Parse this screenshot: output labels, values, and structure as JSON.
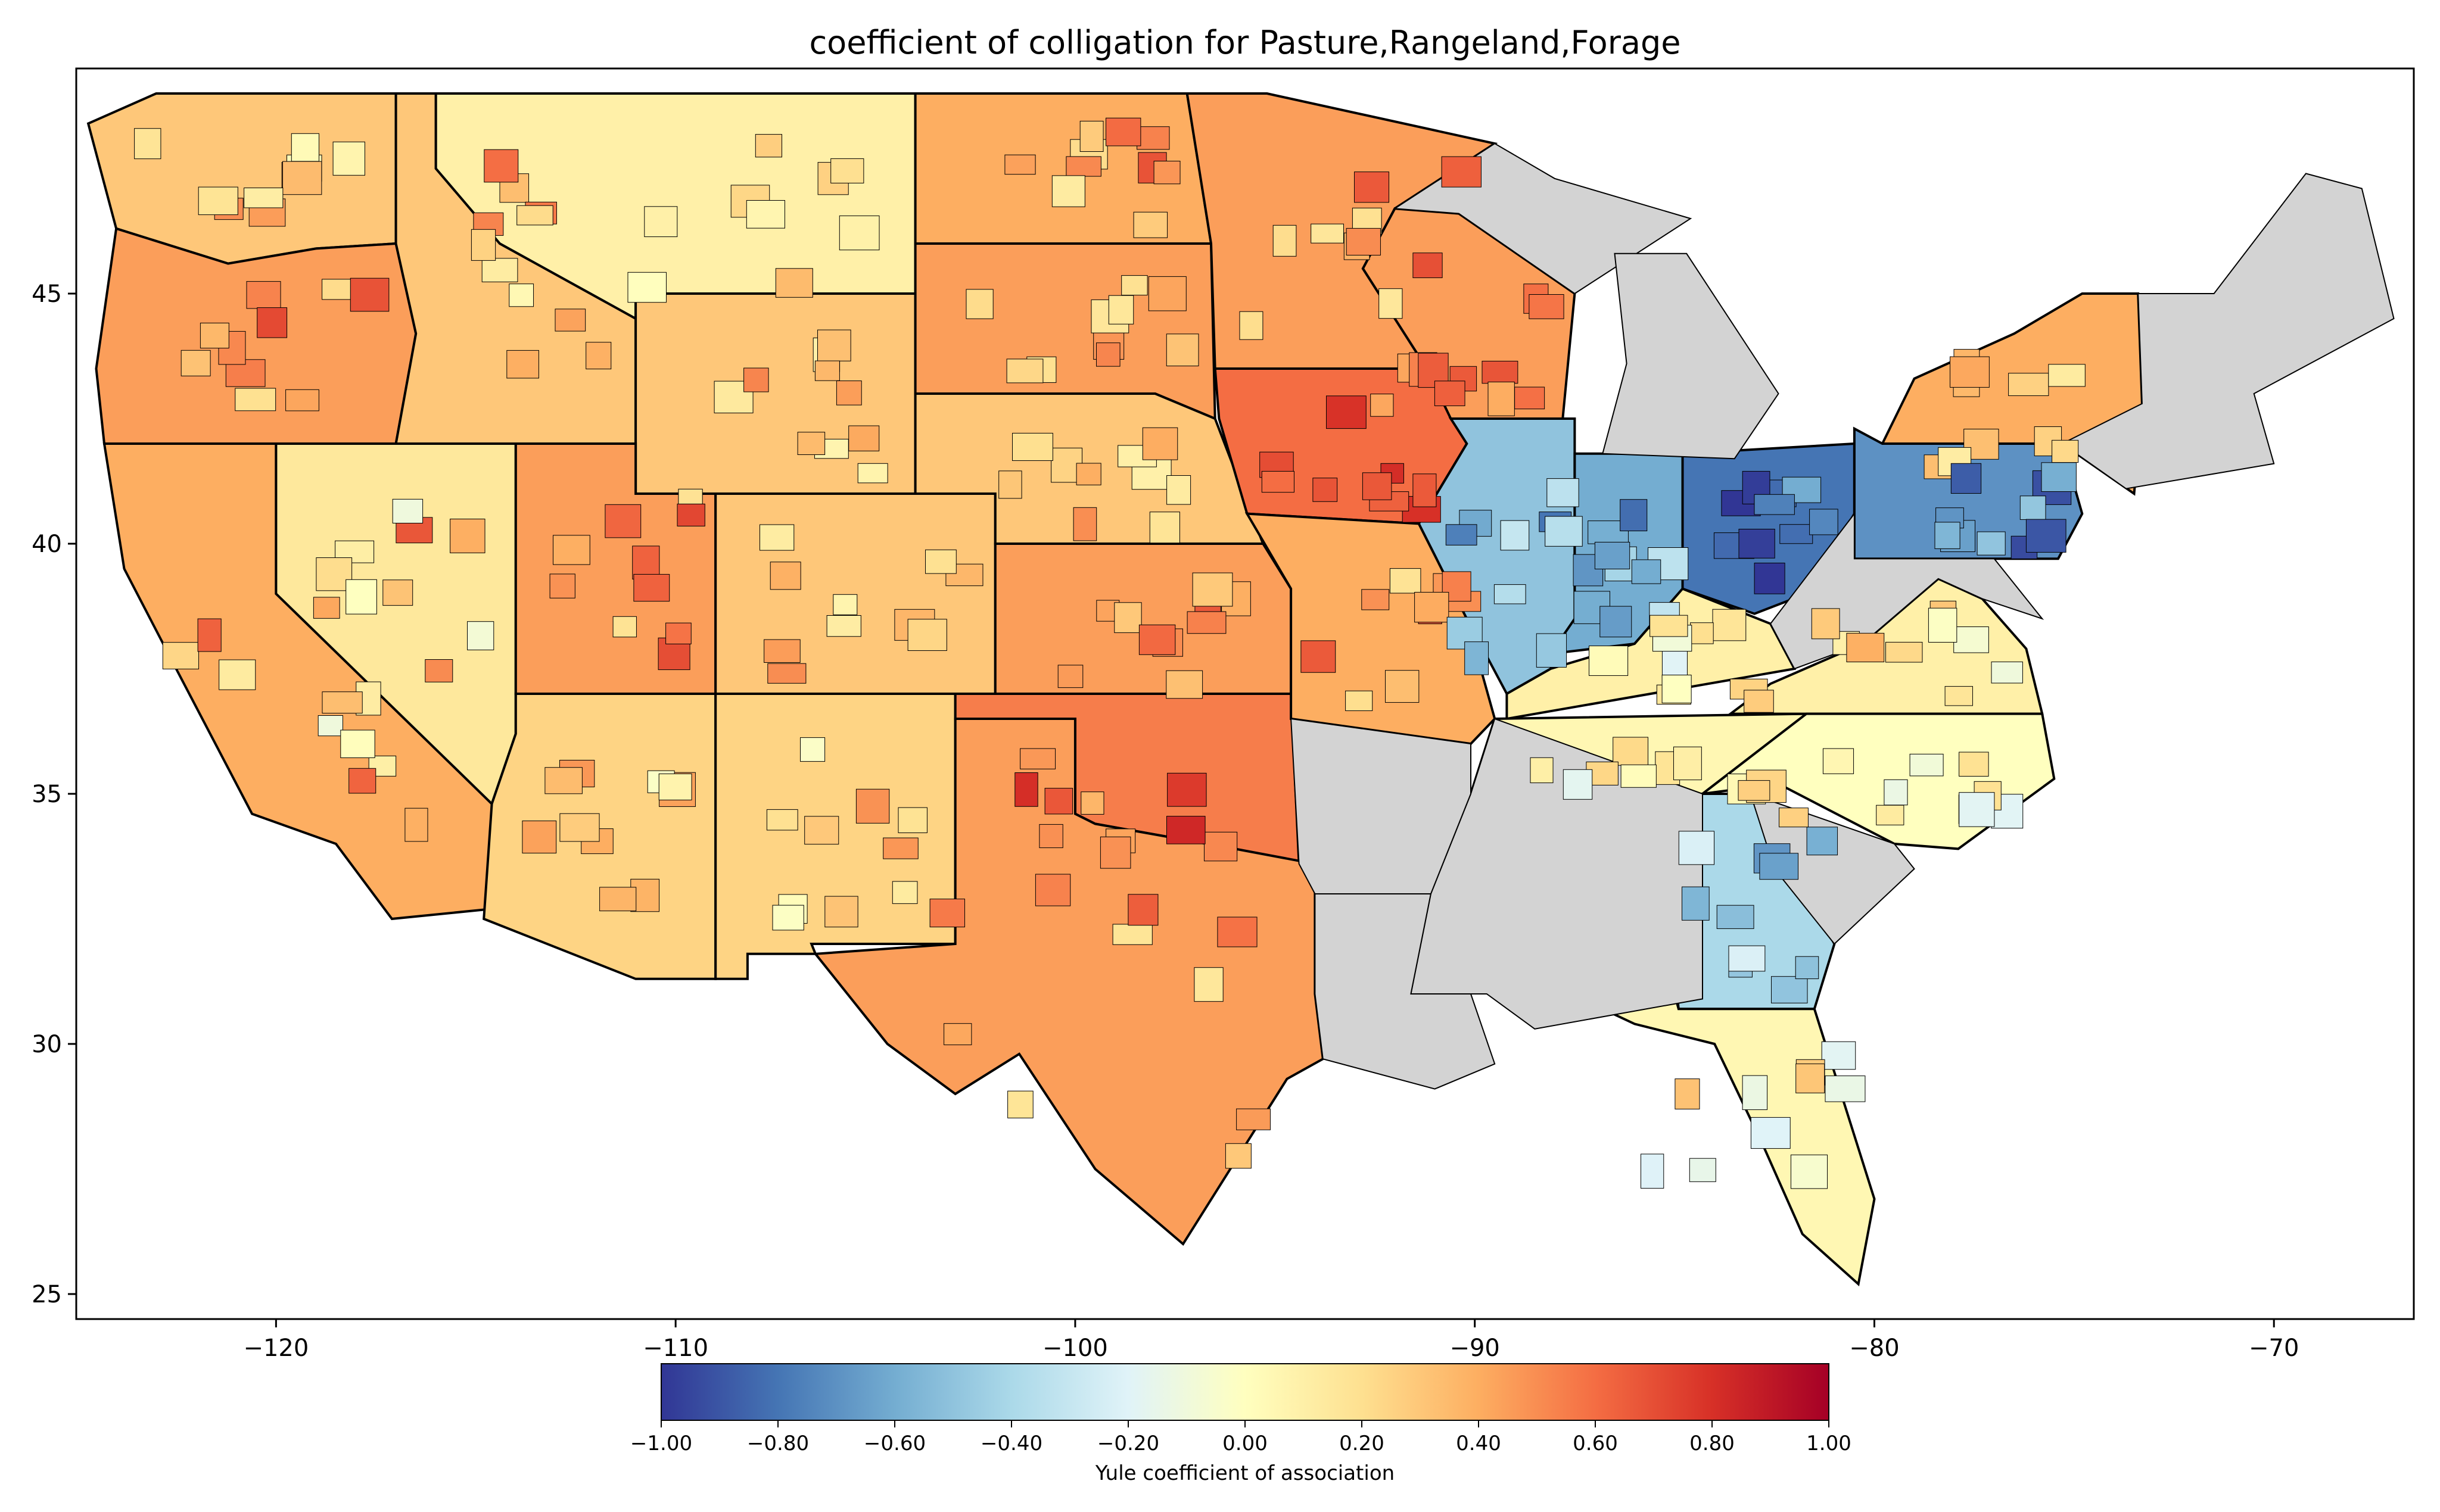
{
  "title": "coefficient of colligation for Pasture,Rangeland,Forage",
  "axes": {
    "x_ticks": [
      "−120",
      "−110",
      "−100",
      "−90",
      "−80",
      "−70"
    ],
    "y_ticks": [
      "25",
      "30",
      "35",
      "40",
      "45"
    ]
  },
  "colorbar": {
    "label": "Yule coefficient of association",
    "ticks": [
      "−1.00",
      "−0.80",
      "−0.60",
      "−0.40",
      "−0.20",
      "0.00",
      "0.20",
      "0.40",
      "0.60",
      "0.80",
      "1.00"
    ],
    "colormap": "RdYlBu_r",
    "stops": [
      "#313695",
      "#4575b4",
      "#74add1",
      "#abd9e9",
      "#e0f3f8",
      "#ffffbf",
      "#fee090",
      "#fdae61",
      "#f46d43",
      "#d73027",
      "#a50026"
    ]
  },
  "chart_data": {
    "type": "choropleth",
    "title": "coefficient of colligation for Pasture,Rangeland,Forage",
    "xlim": [
      -125,
      -66.5
    ],
    "ylim": [
      24.5,
      49.5
    ],
    "x_ticks": [
      -120,
      -110,
      -100,
      -90,
      -80,
      -70
    ],
    "y_ticks": [
      25,
      30,
      35,
      40,
      45
    ],
    "colorbar_range": [
      -1.0,
      1.0
    ],
    "colorbar_label": "Yule coefficient of association",
    "no_data_color": "#d3d3d3",
    "regional_values": [
      {
        "region": "Washington",
        "value": 0.3
      },
      {
        "region": "Oregon",
        "value": 0.45
      },
      {
        "region": "California",
        "value": 0.4
      },
      {
        "region": "Idaho",
        "value": 0.3
      },
      {
        "region": "Nevada",
        "value": 0.15
      },
      {
        "region": "Montana",
        "value": 0.1
      },
      {
        "region": "Wyoming",
        "value": 0.3
      },
      {
        "region": "Utah",
        "value": 0.45
      },
      {
        "region": "Colorado",
        "value": 0.3
      },
      {
        "region": "Arizona",
        "value": 0.25
      },
      {
        "region": "New Mexico",
        "value": 0.25
      },
      {
        "region": "North Dakota",
        "value": 0.4
      },
      {
        "region": "South Dakota",
        "value": 0.45
      },
      {
        "region": "Nebraska",
        "value": 0.3
      },
      {
        "region": "Kansas",
        "value": 0.45
      },
      {
        "region": "Oklahoma",
        "value": 0.55
      },
      {
        "region": "Texas",
        "value": 0.45
      },
      {
        "region": "Minnesota",
        "value": 0.45
      },
      {
        "region": "Iowa",
        "value": 0.6
      },
      {
        "region": "Missouri",
        "value": 0.4
      },
      {
        "region": "Wisconsin",
        "value": 0.45
      },
      {
        "region": "Illinois",
        "value": -0.5
      },
      {
        "region": "Indiana",
        "value": -0.6
      },
      {
        "region": "Ohio",
        "value": -0.8
      },
      {
        "region": "Kentucky",
        "value": 0.1
      },
      {
        "region": "Tennessee",
        "value": 0.05
      },
      {
        "region": "Georgia",
        "value": -0.4
      },
      {
        "region": "Florida",
        "value": 0.05
      },
      {
        "region": "New York",
        "value": 0.4
      },
      {
        "region": "Pennsylvania",
        "value": -0.7
      },
      {
        "region": "Virginia",
        "value": 0.1
      },
      {
        "region": "North Carolina",
        "value": 0.0
      }
    ]
  }
}
